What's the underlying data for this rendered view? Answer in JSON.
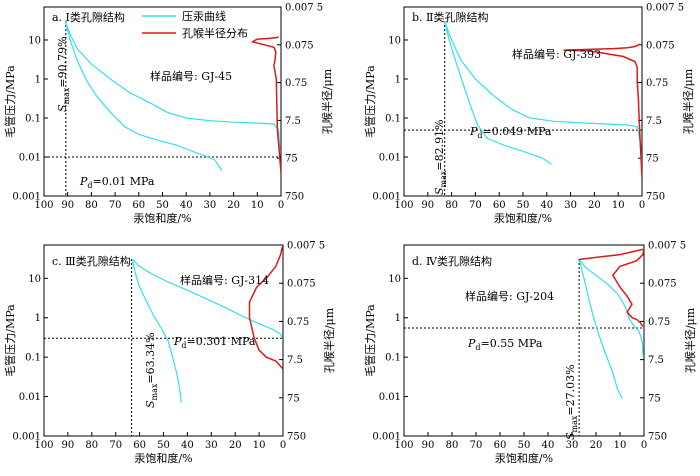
{
  "colors": {
    "curve": "#33e0ee",
    "pore": "#dd1a1a",
    "axis": "#000000"
  },
  "legend": {
    "mercury": "压汞曲线",
    "pore": "孔喉半径分布"
  },
  "chart_data": [
    {
      "type": "line",
      "title": "a. Ⅰ类孔隙结构",
      "sample": "样品编号: GJ-45",
      "xlabel": "汞饱和度/%",
      "ylabel": "毛管压力/MPa",
      "y2label": "孔喉半径/μm",
      "xlim": [
        100,
        0
      ],
      "ylim": [
        0.001,
        70
      ],
      "y2lim": [
        750,
        0.0075
      ],
      "xticks": [
        "100",
        "90",
        "80",
        "70",
        "60",
        "50",
        "40",
        "30",
        "20",
        "10",
        "0"
      ],
      "yticks": [
        "0.001",
        "0.01",
        "0.1",
        "1",
        "10"
      ],
      "y2ticks": [
        "0.007 5",
        "0.075",
        "0.75",
        "7.5",
        "75",
        "750"
      ],
      "pd": {
        "text": "=0.01 MPa",
        "sub": "d",
        "value": 0.01
      },
      "smax": {
        "text": "=90.79%",
        "sub": "max",
        "value": 90.79
      },
      "show_legend": true,
      "series": [
        {
          "role": "intrusion",
          "points": [
            [
              91,
              30
            ],
            [
              89,
              14
            ],
            [
              86,
              6
            ],
            [
              80,
              2.4
            ],
            [
              72,
              1.0
            ],
            [
              64,
              0.45
            ],
            [
              55,
              0.24
            ],
            [
              48,
              0.14
            ],
            [
              40,
              0.1
            ],
            [
              30,
              0.085
            ],
            [
              20,
              0.078
            ],
            [
              10,
              0.074
            ],
            [
              3,
              0.07
            ],
            [
              1,
              0.05
            ],
            [
              0.5,
              0.015
            ]
          ]
        },
        {
          "role": "extrusion",
          "points": [
            [
              91,
              30
            ],
            [
              89,
              10
            ],
            [
              86,
              3
            ],
            [
              82,
              0.9
            ],
            [
              78,
              0.38
            ],
            [
              72,
              0.14
            ],
            [
              66,
              0.06
            ],
            [
              60,
              0.038
            ],
            [
              52,
              0.027
            ],
            [
              44,
              0.02
            ],
            [
              36,
              0.013
            ],
            [
              28,
              0.0085
            ],
            [
              25,
              0.0045
            ]
          ]
        },
        {
          "role": "pore",
          "points": [
            [
              0,
              0.004
            ],
            [
              1.5,
              0.05
            ],
            [
              1.8,
              0.3
            ],
            [
              2,
              1.0
            ],
            [
              3,
              2.2
            ],
            [
              2.5,
              3.2
            ],
            [
              2.2,
              5
            ],
            [
              3,
              6.5
            ],
            [
              7,
              7.5
            ],
            [
              12,
              9
            ],
            [
              10,
              10.5
            ],
            [
              5,
              11
            ],
            [
              2,
              11.5
            ],
            [
              1,
              12
            ]
          ]
        }
      ]
    },
    {
      "type": "line",
      "title": "b. Ⅱ类孔隙结构",
      "sample": "样品编号: GJ-393",
      "xlabel": "汞饱和度/%",
      "ylabel": "毛管压力/MPa",
      "y2label": "孔喉半径/μm",
      "xlim": [
        100,
        0
      ],
      "ylim": [
        0.001,
        70
      ],
      "y2lim": [
        750,
        0.0075
      ],
      "xticks": [
        "100",
        "90",
        "80",
        "70",
        "60",
        "50",
        "40",
        "30",
        "20",
        "10",
        "0"
      ],
      "yticks": [
        "0.001",
        "0.01",
        "0.1",
        "1",
        "10"
      ],
      "y2ticks": [
        "0.007 5",
        "0.075",
        "0.75",
        "7.5",
        "75",
        "750"
      ],
      "pd": {
        "text": "=0.049 MPa",
        "sub": "d",
        "value": 0.049
      },
      "smax": {
        "text": "=82.91%",
        "sub": "max",
        "value": 82.91
      },
      "show_legend": false,
      "series": [
        {
          "role": "intrusion",
          "points": [
            [
              83,
              30
            ],
            [
              80,
              10
            ],
            [
              76,
              3
            ],
            [
              70,
              1
            ],
            [
              63,
              0.4
            ],
            [
              55,
              0.17
            ],
            [
              47,
              0.1
            ],
            [
              37,
              0.082
            ],
            [
              25,
              0.075
            ],
            [
              15,
              0.07
            ],
            [
              6,
              0.066
            ],
            [
              2,
              0.06
            ],
            [
              0.5,
              0.02
            ],
            [
              0.2,
              0.006
            ]
          ]
        },
        {
          "role": "extrusion",
          "points": [
            [
              83,
              30
            ],
            [
              81,
              10
            ],
            [
              78,
              2.5
            ],
            [
              75,
              0.7
            ],
            [
              72,
              0.2
            ],
            [
              69,
              0.065
            ],
            [
              65,
              0.03
            ],
            [
              58,
              0.02
            ],
            [
              50,
              0.014
            ],
            [
              42,
              0.0095
            ],
            [
              38,
              0.0065
            ]
          ]
        },
        {
          "role": "pore",
          "points": [
            [
              0,
              0.003
            ],
            [
              1,
              0.05
            ],
            [
              1.5,
              0.3
            ],
            [
              2,
              0.9
            ],
            [
              2,
              2.0
            ],
            [
              3,
              2.8
            ],
            [
              8,
              3.8
            ],
            [
              22,
              5.2
            ],
            [
              33,
              5.5
            ],
            [
              12,
              6
            ],
            [
              6,
              6.3
            ],
            [
              3,
              6.8
            ],
            [
              2,
              7.2
            ],
            [
              0.8,
              7.8
            ]
          ]
        }
      ]
    },
    {
      "type": "line",
      "title": "c. Ⅲ类孔隙结构",
      "sample": "样品编号: GJ-314",
      "xlabel": "汞饱和度/%",
      "ylabel": "毛管压力/MPa",
      "y2label": "孔喉半径/μm",
      "xlim": [
        100,
        0
      ],
      "ylim": [
        0.001,
        70
      ],
      "y2lim": [
        750,
        0.0075
      ],
      "xticks": [
        "100",
        "90",
        "80",
        "70",
        "60",
        "50",
        "40",
        "30",
        "20",
        "10",
        "0"
      ],
      "yticks": [
        "0.001",
        "0.01",
        "0.1",
        "1",
        "10"
      ],
      "y2ticks": [
        "0.007 5",
        "0.075",
        "0.75",
        "7.5",
        "75",
        "750"
      ],
      "pd": {
        "text": "=0.301 MPa",
        "sub": "d",
        "value": 0.301
      },
      "smax": {
        "text": "=63.34%",
        "sub": "max",
        "value": 63.34
      },
      "show_legend": false,
      "series": [
        {
          "role": "intrusion",
          "points": [
            [
              63,
              30
            ],
            [
              60,
              20
            ],
            [
              55,
              13
            ],
            [
              48,
              8
            ],
            [
              40,
              5
            ],
            [
              32,
              3
            ],
            [
              24,
              1.8
            ],
            [
              17,
              1.1
            ],
            [
              10,
              0.7
            ],
            [
              4,
              0.5
            ],
            [
              1,
              0.38
            ],
            [
              0.3,
              0.3
            ]
          ]
        },
        {
          "role": "extrusion",
          "points": [
            [
              63,
              30
            ],
            [
              62,
              15
            ],
            [
              60,
              6
            ],
            [
              57,
              2.5
            ],
            [
              54,
              1.1
            ],
            [
              51,
              0.55
            ],
            [
              48,
              0.25
            ],
            [
              46,
              0.09
            ],
            [
              44,
              0.03
            ],
            [
              43,
              0.012
            ],
            [
              42.5,
              0.007
            ]
          ]
        },
        {
          "role": "pore",
          "points": [
            [
              0,
              0.05
            ],
            [
              3,
              0.08
            ],
            [
              7,
              0.1
            ],
            [
              10,
              0.15
            ],
            [
              12,
              0.3
            ],
            [
              14,
              1
            ],
            [
              14,
              2.5
            ],
            [
              11,
              6
            ],
            [
              7,
              10
            ],
            [
              3,
              20
            ],
            [
              1,
              40
            ],
            [
              0.2,
              65
            ]
          ]
        }
      ]
    },
    {
      "type": "line",
      "title": "d. Ⅳ类孔隙结构",
      "sample": "样品编号: GJ-204",
      "xlabel": "汞饱和度/%",
      "ylabel": "毛管压力/MPa",
      "y2label": "孔喉半径/μm",
      "xlim": [
        100,
        0
      ],
      "ylim": [
        0.001,
        70
      ],
      "y2lim": [
        750,
        0.0075
      ],
      "xticks": [
        "100",
        "90",
        "80",
        "70",
        "60",
        "50",
        "40",
        "30",
        "20",
        "10",
        "0"
      ],
      "yticks": [
        "0.001",
        "0.01",
        "0.1",
        "1",
        "10"
      ],
      "y2ticks": [
        "0.007 5",
        "0.075",
        "0.75",
        "7.5",
        "75",
        "750"
      ],
      "pd": {
        "text": "=0.55 MPa",
        "sub": "d",
        "value": 0.55
      },
      "smax": {
        "text": "=27.03%",
        "sub": "max",
        "value": 27.03
      },
      "show_legend": false,
      "series": [
        {
          "role": "intrusion",
          "points": [
            [
              27,
              30
            ],
            [
              24,
              18
            ],
            [
              20,
              12
            ],
            [
              15,
              7
            ],
            [
              11,
              4
            ],
            [
              8,
              2
            ],
            [
              6,
              0.9
            ],
            [
              4,
              0.6
            ],
            [
              2,
              0.45
            ],
            [
              0.8,
              0.25
            ],
            [
              0.3,
              0.1
            ]
          ]
        },
        {
          "role": "extrusion",
          "points": [
            [
              27,
              30
            ],
            [
              25,
              10
            ],
            [
              23,
              3
            ],
            [
              21,
              1
            ],
            [
              19,
              0.4
            ],
            [
              16,
              0.12
            ],
            [
              13,
              0.04
            ],
            [
              11,
              0.015
            ],
            [
              9,
              0.009
            ]
          ]
        },
        {
          "role": "pore",
          "points": [
            [
              27,
              30
            ],
            [
              20,
              34
            ],
            [
              10,
              40
            ],
            [
              0,
              55
            ],
            [
              0.5,
              40
            ],
            [
              3,
              28
            ],
            [
              10,
              20
            ],
            [
              13,
              12
            ],
            [
              10,
              6
            ],
            [
              7,
              3.5
            ],
            [
              5,
              2.2
            ],
            [
              7,
              1.4
            ],
            [
              5,
              1.0
            ],
            [
              3,
              0.9
            ],
            [
              1.5,
              0.75
            ],
            [
              0.5,
              0.6
            ]
          ]
        }
      ]
    }
  ]
}
